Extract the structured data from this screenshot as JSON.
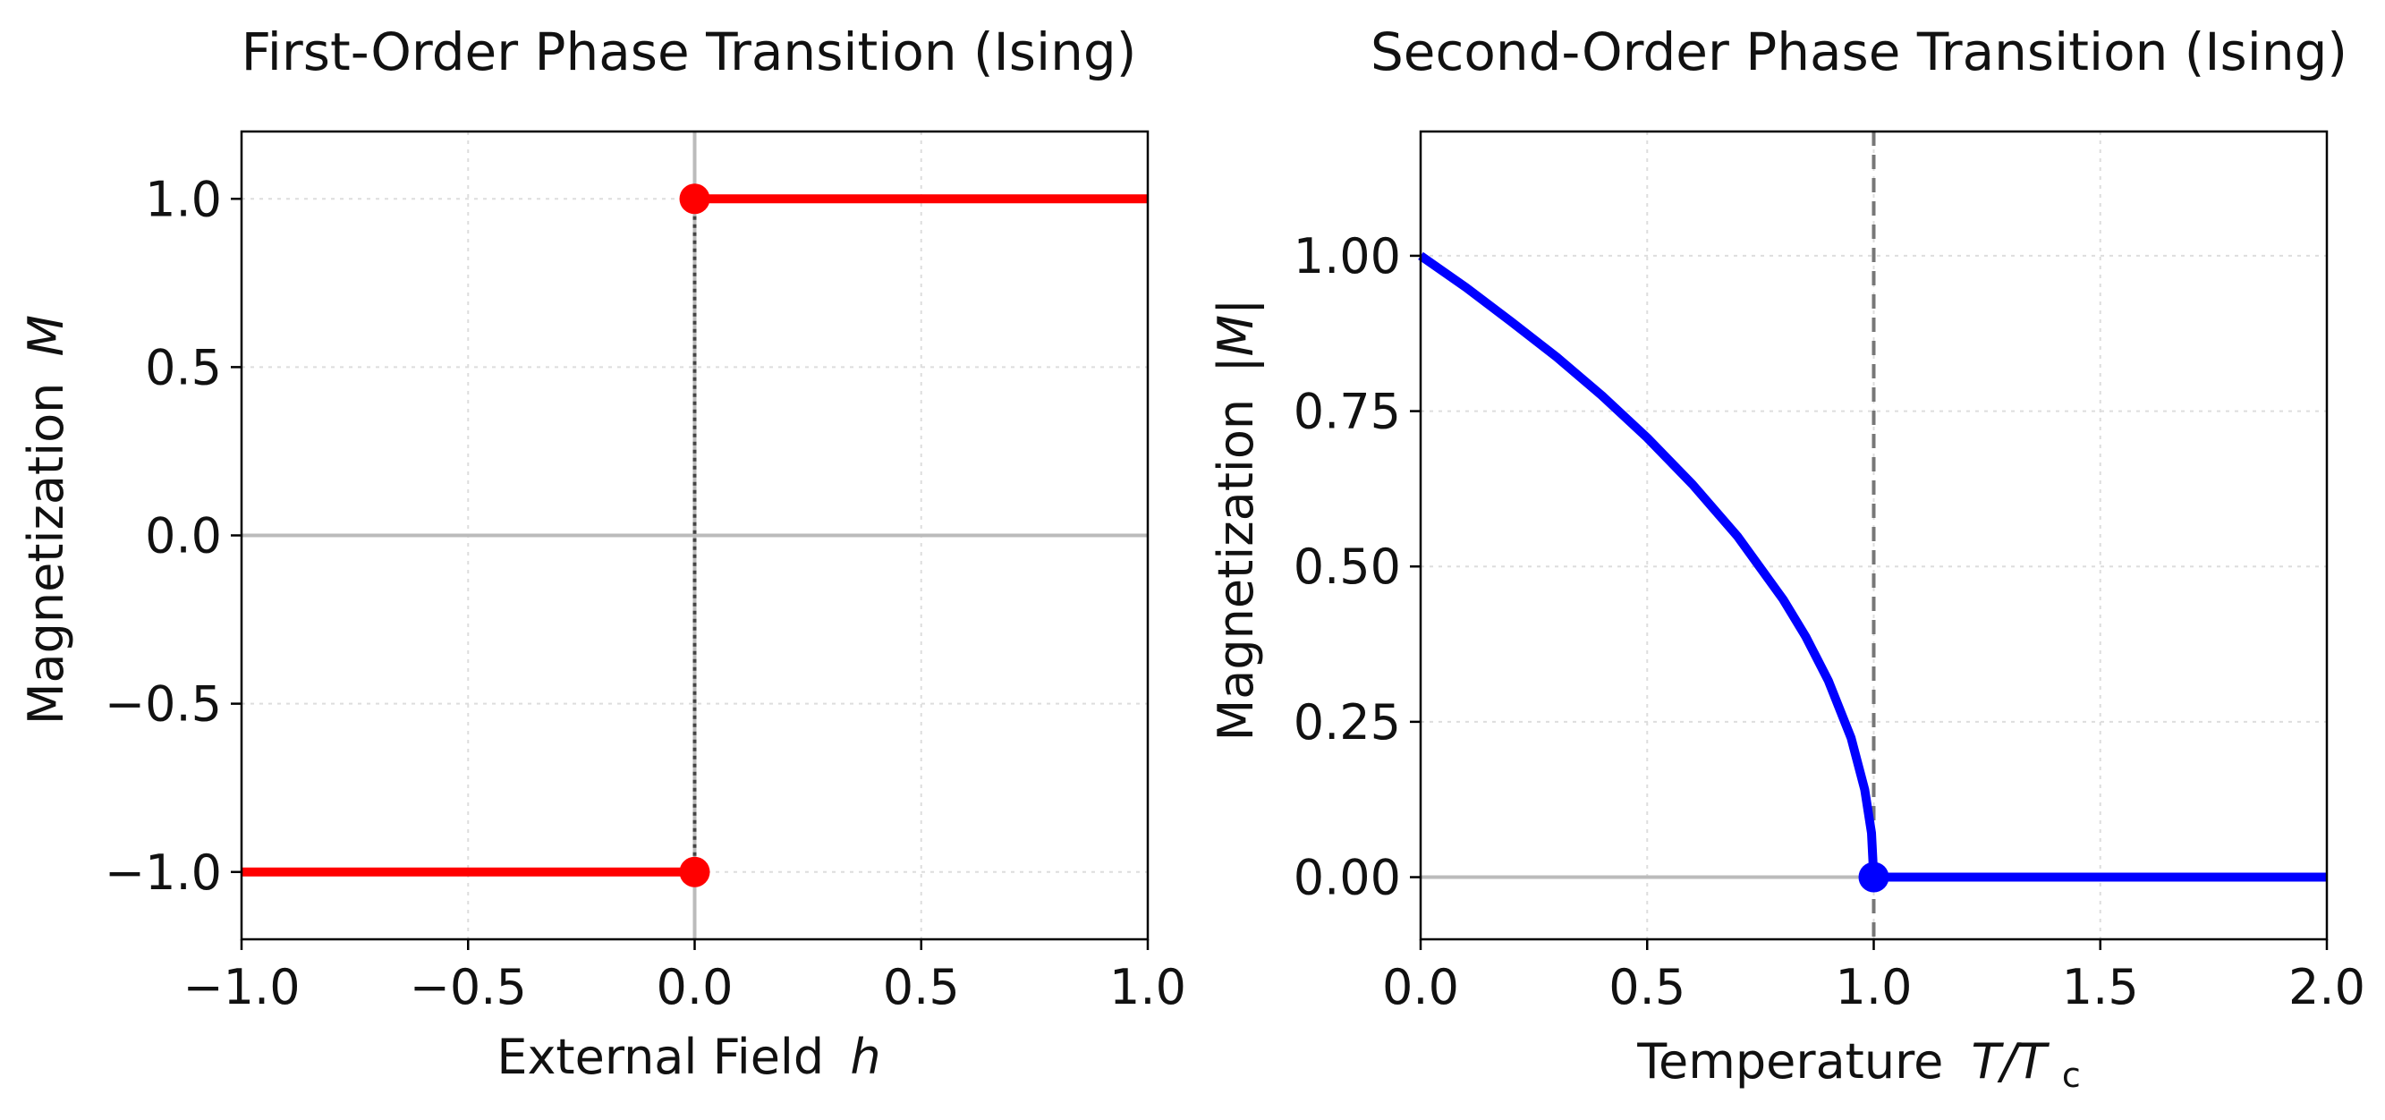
{
  "chart_data": [
    {
      "type": "line",
      "title": "First-Order Phase Transition (Ising)",
      "xlabel": "External Field",
      "xlabel_symbol": "h",
      "ylabel": "Magnetization",
      "ylabel_symbol": "M",
      "xlim": [
        -1.0,
        1.0
      ],
      "ylim": [
        -1.2,
        1.2
      ],
      "xticks": [
        -1.0,
        -0.5,
        0.0,
        0.5,
        1.0
      ],
      "xtick_labels": [
        "−1.0",
        "−0.5",
        "0.0",
        "0.5",
        "1.0"
      ],
      "yticks": [
        -1.0,
        -0.5,
        0.0,
        0.5,
        1.0
      ],
      "ytick_labels": [
        "−1.0",
        "−0.5",
        "0.0",
        "0.5",
        "1.0"
      ],
      "grid": true,
      "series": [
        {
          "color": "#ff0000",
          "x": [
            -1.0,
            0.0
          ],
          "y": [
            -1.0,
            -1.0
          ]
        },
        {
          "color": "#ff0000",
          "x": [
            0.0,
            1.0
          ],
          "y": [
            1.0,
            1.0
          ]
        }
      ],
      "markers": [
        {
          "x": 0.0,
          "y": 1.0,
          "color": "#ff0000"
        },
        {
          "x": 0.0,
          "y": -1.0,
          "color": "#ff0000"
        }
      ],
      "reference_lines": [
        {
          "orientation": "horizontal",
          "value": 0.0,
          "color": "#bbbbbb"
        },
        {
          "orientation": "vertical",
          "value": 0.0,
          "color": "#bbbbbb"
        }
      ],
      "jump_line": {
        "x": 0.0,
        "y_from": -1.0,
        "y_to": 1.0,
        "color": "#444444",
        "style": "dotted"
      }
    },
    {
      "type": "line",
      "title": "Second-Order Phase Transition (Ising)",
      "xlabel": "Temperature",
      "xlabel_symbol": "T/T",
      "xlabel_subscript": "c",
      "ylabel": "Magnetization",
      "ylabel_symbol": "|M|",
      "xlim": [
        0.0,
        2.0
      ],
      "ylim": [
        -0.1,
        1.2
      ],
      "xticks": [
        0.0,
        0.5,
        1.0,
        1.5,
        2.0
      ],
      "xtick_labels": [
        "0.0",
        "0.5",
        "1.0",
        "1.5",
        "2.0"
      ],
      "yticks": [
        0.0,
        0.25,
        0.5,
        0.75,
        1.0
      ],
      "ytick_labels": [
        "0.00",
        "0.25",
        "0.50",
        "0.75",
        "1.00"
      ],
      "grid": true,
      "series": [
        {
          "color": "#0000ff",
          "x": [
            0.0,
            0.1,
            0.2,
            0.3,
            0.4,
            0.5,
            0.6,
            0.7,
            0.8,
            0.85,
            0.9,
            0.95,
            0.98,
            0.995,
            1.0
          ],
          "y": [
            1.0,
            0.949,
            0.894,
            0.837,
            0.775,
            0.707,
            0.632,
            0.548,
            0.447,
            0.387,
            0.316,
            0.224,
            0.141,
            0.071,
            0.0
          ]
        },
        {
          "color": "#0000ff",
          "x": [
            1.0,
            2.0
          ],
          "y": [
            0.0,
            0.0
          ]
        }
      ],
      "markers": [
        {
          "x": 1.0,
          "y": 0.0,
          "color": "#0000ff"
        }
      ],
      "reference_lines": [
        {
          "orientation": "horizontal",
          "value": 0.0,
          "color": "#bbbbbb"
        }
      ],
      "critical_line": {
        "x": 1.0,
        "color": "#777777",
        "style": "dashed"
      }
    }
  ]
}
